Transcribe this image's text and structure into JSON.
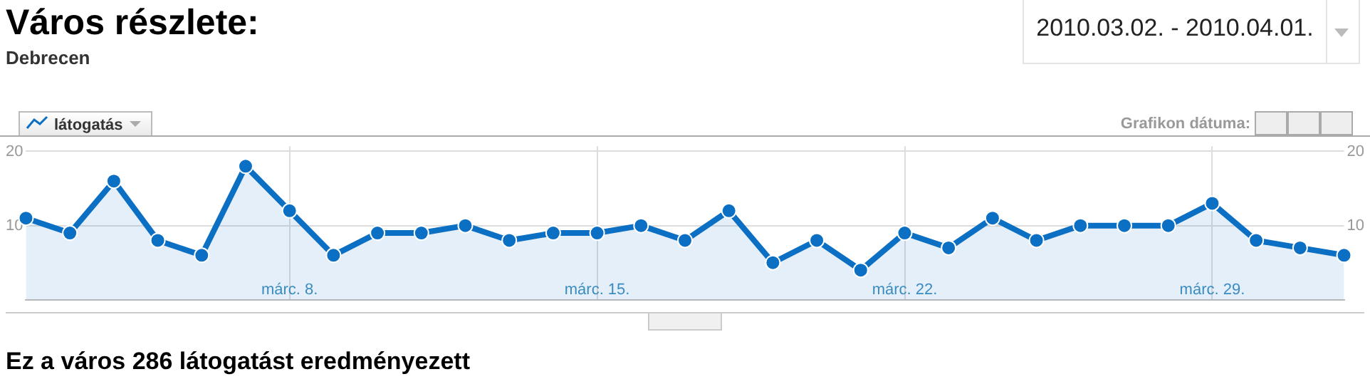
{
  "chart_data": {
    "type": "area",
    "title": "Város részlete:",
    "subtitle": "Debrecen",
    "annotations": [
      "2010.03.02. - 2010.04.01.",
      "Grafikon dátuma:",
      "Ez a város 286 látogatást eredményezett"
    ],
    "categories": [
      null,
      null,
      null,
      null,
      null,
      null,
      "márc. 8.",
      null,
      null,
      null,
      null,
      null,
      null,
      "márc. 15.",
      null,
      null,
      null,
      null,
      null,
      null,
      "márc. 22.",
      null,
      null,
      null,
      null,
      null,
      null,
      "márc. 29.",
      null,
      null,
      null
    ],
    "series": [
      {
        "name": "látogatás",
        "color": "#0b6fc4",
        "values": [
          11,
          9,
          16,
          8,
          6,
          18,
          12,
          6,
          9,
          9,
          10,
          8,
          9,
          9,
          10,
          8,
          12,
          5,
          8,
          4,
          9,
          7,
          11,
          8,
          10,
          10,
          10,
          13,
          8,
          7,
          6
        ]
      }
    ],
    "ylim": [
      0,
      20.7
    ],
    "yticks": [
      10,
      20
    ],
    "y2lim": [
      0,
      20.7
    ],
    "y2ticks": [
      10,
      20
    ],
    "grid": true,
    "legend": "top left",
    "marker": "circle",
    "line_style": "solid"
  }
}
